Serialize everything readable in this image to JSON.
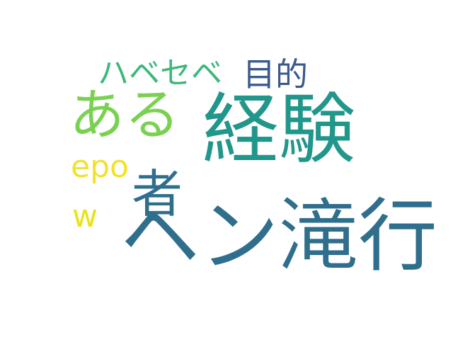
{
  "words": [
    {
      "text": "ヘン滝行",
      "color": "#2f6e8c"
    },
    {
      "text": "経験",
      "color": "#21968a"
    },
    {
      "text": "ある",
      "color": "#7ad151"
    },
    {
      "text": "者",
      "color": "#2f6e8c"
    },
    {
      "text": "ハベセベ",
      "color": "#3cb87a"
    },
    {
      "text": "目的",
      "color": "#3a5a8c"
    },
    {
      "text": "epo",
      "color": "#f2e22a"
    },
    {
      "text": "w",
      "color": "#e8e419"
    }
  ]
}
